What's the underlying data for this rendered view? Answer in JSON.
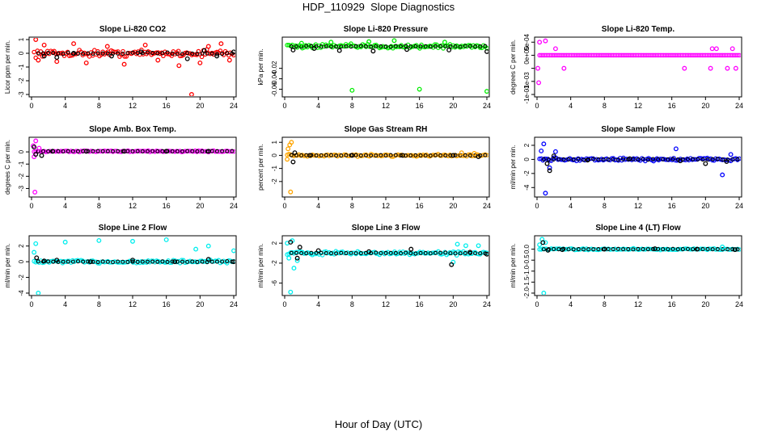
{
  "figure": {
    "title": "HDP_110929  Slope Diagnostics",
    "xlabel": "Hour of Day (UTC)"
  },
  "colors": {
    "black": "#000000",
    "red": "#ff0000",
    "green": "#00ee00",
    "magenta": "#ff00ff",
    "orange": "#ffa500",
    "blue": "#0000ff",
    "cyan": "#00eeee"
  },
  "chart_data": [
    {
      "type": "scatter",
      "title": "Slope Li-820 CO2",
      "ylabel": "Licor ppm per min.",
      "xlim": [
        0,
        24
      ],
      "ylim": [
        -3,
        1
      ],
      "xticks": [
        0,
        4,
        8,
        12,
        16,
        20,
        24
      ],
      "yticks": [
        -3,
        -2,
        -1,
        0,
        1
      ],
      "ytick_labels": [
        "-3",
        "-2",
        "-1",
        "0",
        "1"
      ],
      "color": "red",
      "cloud": {
        "base": 0,
        "spread": 0.35
      },
      "series": [
        {
          "name": "minute slopes",
          "color": "red",
          "points": [
            [
              0.5,
              1.0
            ],
            [
              0.8,
              -0.5
            ],
            [
              1.5,
              0.6
            ],
            [
              3.0,
              -0.6
            ],
            [
              5.0,
              0.7
            ],
            [
              6.5,
              -0.7
            ],
            [
              9.0,
              0.5
            ],
            [
              11.0,
              -0.8
            ],
            [
              13.5,
              0.6
            ],
            [
              15.0,
              -0.5
            ],
            [
              17.5,
              -0.9
            ],
            [
              19.0,
              -3.0
            ],
            [
              20.0,
              -0.7
            ],
            [
              21.0,
              0.5
            ],
            [
              22.5,
              0.7
            ],
            [
              23.5,
              -0.5
            ]
          ]
        },
        {
          "name": "means",
          "color": "black",
          "points": [
            [
              1.5,
              -0.2
            ],
            [
              3.0,
              -0.3
            ],
            [
              5.0,
              0.0
            ],
            [
              9.5,
              -0.2
            ],
            [
              13.0,
              0.1
            ],
            [
              18.5,
              -0.4
            ],
            [
              20.5,
              0.2
            ],
            [
              22.0,
              -0.2
            ],
            [
              24.0,
              0.1
            ]
          ]
        }
      ]
    },
    {
      "type": "scatter",
      "title": "Slope Li-820 Pressure",
      "ylabel": "kPa per min.",
      "xlim": [
        0,
        24
      ],
      "ylim": [
        -0.07,
        0.035
      ],
      "xticks": [
        0,
        4,
        8,
        12,
        16,
        20,
        24
      ],
      "yticks": [
        -0.06,
        -0.04,
        -0.02
      ],
      "ytick_labels": [
        "-0.06",
        "-0.04",
        "-0.02"
      ],
      "color": "green",
      "cloud": {
        "base": 0.022,
        "spread": 0.006
      },
      "series": [
        {
          "name": "minute slopes",
          "color": "green",
          "points": [
            [
              2.0,
              0.028
            ],
            [
              5.5,
              0.03
            ],
            [
              8.0,
              -0.062
            ],
            [
              10.0,
              0.031
            ],
            [
              13.0,
              0.033
            ],
            [
              16.0,
              -0.06
            ],
            [
              19.0,
              0.03
            ],
            [
              24.0,
              -0.064
            ]
          ]
        },
        {
          "name": "means",
          "color": "black",
          "points": [
            [
              1.0,
              0.015
            ],
            [
              3.5,
              0.018
            ],
            [
              6.5,
              0.014
            ],
            [
              10.5,
              0.013
            ],
            [
              14.5,
              0.016
            ],
            [
              19.5,
              0.015
            ],
            [
              24.0,
              0.012
            ]
          ]
        }
      ]
    },
    {
      "type": "scatter",
      "title": "Slope Li-820 Temp.",
      "ylabel": "degrees C per min.",
      "xlim": [
        0,
        24
      ],
      "ylim": [
        -0.0015,
        0.0006
      ],
      "xticks": [
        0,
        4,
        8,
        12,
        16,
        20,
        24
      ],
      "yticks": [
        -0.0015,
        -0.001,
        -0.0005,
        0,
        0.0005
      ],
      "ytick_labels": [
        "-1e-03",
        "-1e-03",
        "",
        "0e+00",
        "5e-04"
      ],
      "color": "magenta",
      "cloud": {
        "base": 0,
        "spread": 0
      },
      "series": [
        {
          "name": "minute slopes",
          "color": "magenta",
          "points": [
            [
              0.1,
              -0.0005
            ],
            [
              0.2,
              -0.00105
            ],
            [
              0.3,
              0.0005
            ],
            [
              1.0,
              0.00055
            ],
            [
              2.2,
              0.00025
            ],
            [
              3.2,
              -0.0005
            ],
            [
              17.5,
              -0.0005
            ],
            [
              20.6,
              -0.0005
            ],
            [
              20.8,
              0.00025
            ],
            [
              21.3,
              0.00025
            ],
            [
              22.6,
              -0.0005
            ],
            [
              23.2,
              0.00025
            ],
            [
              23.6,
              -0.0005
            ]
          ]
        }
      ]
    },
    {
      "type": "scatter",
      "title": "Slope Amb. Box Temp.",
      "ylabel": "degrees C per min.",
      "xlim": [
        0,
        24
      ],
      "ylim": [
        -3.5,
        1
      ],
      "xticks": [
        0,
        4,
        8,
        12,
        16,
        20,
        24
      ],
      "yticks": [
        -3,
        -2,
        -1,
        0
      ],
      "ytick_labels": [
        "-3",
        "-2",
        "-1",
        "0"
      ],
      "color": "magenta",
      "cloud": {
        "base": 0.05,
        "spread": 0.08
      },
      "series": [
        {
          "name": "minute slopes",
          "color": "magenta",
          "points": [
            [
              0.2,
              0.5
            ],
            [
              0.5,
              0.9
            ],
            [
              0.9,
              0.3
            ],
            [
              0.3,
              -0.4
            ],
            [
              0.4,
              -3.3
            ]
          ]
        },
        {
          "name": "means",
          "color": "black",
          "points": [
            [
              0.3,
              0.4
            ],
            [
              0.5,
              -0.2
            ],
            [
              1.2,
              -0.3
            ],
            [
              2.5,
              0.05
            ],
            [
              6.5,
              0.05
            ],
            [
              11.0,
              0.05
            ],
            [
              16.0,
              0.05
            ],
            [
              21.0,
              0.05
            ]
          ]
        }
      ]
    },
    {
      "type": "scatter",
      "title": "Slope Gas Stream RH",
      "ylabel": "percent per min.",
      "xlim": [
        0,
        24
      ],
      "ylim": [
        -3,
        1.2
      ],
      "xticks": [
        0,
        4,
        8,
        12,
        16,
        20,
        24
      ],
      "yticks": [
        -2,
        -1,
        0,
        1
      ],
      "ytick_labels": [
        "-2",
        "-1",
        "0",
        "1"
      ],
      "color": "orange",
      "cloud": {
        "base": 0,
        "spread": 0.12
      },
      "series": [
        {
          "name": "minute slopes",
          "color": "orange",
          "points": [
            [
              0.4,
              0.5
            ],
            [
              0.6,
              0.8
            ],
            [
              0.8,
              1.0
            ],
            [
              0.3,
              -0.3
            ],
            [
              0.7,
              -2.8
            ],
            [
              21.0,
              0.2
            ],
            [
              22.5,
              0.15
            ]
          ]
        },
        {
          "name": "means",
          "color": "black",
          "points": [
            [
              1.0,
              -0.5
            ],
            [
              1.2,
              0.2
            ],
            [
              3.0,
              0.0
            ],
            [
              8.0,
              0.0
            ],
            [
              14.0,
              0.0
            ],
            [
              20.0,
              0.0
            ],
            [
              23.0,
              -0.1
            ]
          ]
        }
      ]
    },
    {
      "type": "scatter",
      "title": "Slope Sample Flow",
      "ylabel": "ml/min per min.",
      "xlim": [
        0,
        24
      ],
      "ylim": [
        -5,
        2.8
      ],
      "xticks": [
        0,
        4,
        8,
        12,
        16,
        20,
        24
      ],
      "yticks": [
        -4,
        -2,
        0,
        2
      ],
      "ytick_labels": [
        "-4",
        "-2",
        "0",
        "2"
      ],
      "color": "blue",
      "cloud": {
        "base": 0,
        "spread": 0.35
      },
      "series": [
        {
          "name": "minute slopes",
          "color": "blue",
          "points": [
            [
              0.8,
              2.2
            ],
            [
              0.5,
              1.2
            ],
            [
              1.0,
              -4.8
            ],
            [
              1.5,
              -1.2
            ],
            [
              2.2,
              1.1
            ],
            [
              16.5,
              1.5
            ],
            [
              22.0,
              -2.2
            ],
            [
              23.0,
              0.7
            ]
          ]
        },
        {
          "name": "means",
          "color": "black",
          "points": [
            [
              1.2,
              -0.6
            ],
            [
              1.5,
              -1.6
            ],
            [
              2.0,
              0.5
            ],
            [
              6.0,
              -0.1
            ],
            [
              11.0,
              0.1
            ],
            [
              17.0,
              -0.2
            ],
            [
              20.0,
              -0.6
            ],
            [
              22.5,
              -0.3
            ]
          ]
        }
      ]
    },
    {
      "type": "scatter",
      "title": "Slope Line 2 Flow",
      "ylabel": "ml/min per min.",
      "xlim": [
        0,
        24
      ],
      "ylim": [
        -4,
        3
      ],
      "xticks": [
        0,
        4,
        8,
        12,
        16,
        20,
        24
      ],
      "yticks": [
        -4,
        -2,
        0,
        2
      ],
      "ytick_labels": [
        "-4",
        "-2",
        "0",
        "2"
      ],
      "color": "cyan",
      "cloud": {
        "base": 0,
        "spread": 0.3
      },
      "series": [
        {
          "name": "minute slopes",
          "color": "cyan",
          "points": [
            [
              0.5,
              2.3
            ],
            [
              0.8,
              -4.0
            ],
            [
              0.3,
              1.2
            ],
            [
              4.0,
              2.5
            ],
            [
              8.0,
              2.7
            ],
            [
              12.0,
              2.6
            ],
            [
              16.0,
              2.8
            ],
            [
              19.5,
              1.6
            ],
            [
              21.0,
              2.0
            ],
            [
              24.0,
              1.4
            ]
          ]
        },
        {
          "name": "means",
          "color": "black",
          "points": [
            [
              0.6,
              0.5
            ],
            [
              1.5,
              0.1
            ],
            [
              3.0,
              0.2
            ],
            [
              7.0,
              0.0
            ],
            [
              12.0,
              0.2
            ],
            [
              17.0,
              0.0
            ],
            [
              21.0,
              0.3
            ],
            [
              24.0,
              0.0
            ]
          ]
        }
      ]
    },
    {
      "type": "scatter",
      "title": "Slope Line 3 Flow",
      "ylabel": "ml/min per min.",
      "xlim": [
        0,
        24
      ],
      "ylim": [
        -8,
        3
      ],
      "xticks": [
        0,
        4,
        8,
        12,
        16,
        20,
        24
      ],
      "yticks": [
        -6,
        -2,
        2
      ],
      "ytick_labels": [
        "-6",
        "-2",
        "2"
      ],
      "color": "cyan",
      "cloud": {
        "base": 0,
        "spread": 0.5
      },
      "series": [
        {
          "name": "minute slopes",
          "color": "cyan",
          "points": [
            [
              0.3,
              2.0
            ],
            [
              0.5,
              -1.0
            ],
            [
              0.7,
              -7.8
            ],
            [
              1.1,
              -3.0
            ],
            [
              1.5,
              -1.5
            ],
            [
              0.9,
              2.5
            ],
            [
              20.0,
              -1.8
            ],
            [
              20.5,
              1.8
            ],
            [
              21.5,
              1.5
            ],
            [
              23.0,
              1.5
            ]
          ]
        },
        {
          "name": "means",
          "color": "black",
          "points": [
            [
              0.7,
              2.2
            ],
            [
              1.5,
              -1.0
            ],
            [
              1.8,
              1.2
            ],
            [
              4.0,
              0.5
            ],
            [
              10.0,
              0.3
            ],
            [
              15.0,
              0.8
            ],
            [
              19.8,
              -2.3
            ],
            [
              22.0,
              0.2
            ],
            [
              24.0,
              -0.2
            ]
          ]
        }
      ]
    },
    {
      "type": "scatter",
      "title": "Slope Line 4 (LT) Flow",
      "ylabel": "ml/min per min.",
      "xlim": [
        0,
        24
      ],
      "ylim": [
        -2,
        0.5
      ],
      "xticks": [
        0,
        4,
        8,
        12,
        16,
        20,
        24
      ],
      "yticks": [
        -2,
        -1.5,
        -1,
        -0.5,
        0
      ],
      "ytick_labels": [
        "-2.0",
        "-1.5",
        "-1.0",
        "-0.5",
        "0.0"
      ],
      "color": "cyan",
      "cloud": {
        "base": 0,
        "spread": 0.05
      },
      "series": [
        {
          "name": "minute slopes",
          "color": "cyan",
          "points": [
            [
              0.3,
              0.2
            ],
            [
              0.6,
              0.45
            ],
            [
              0.8,
              -2.0
            ],
            [
              1.0,
              0.3
            ],
            [
              22.0,
              0.1
            ]
          ]
        },
        {
          "name": "means",
          "color": "black",
          "points": [
            [
              0.7,
              0.3
            ],
            [
              1.3,
              -0.05
            ],
            [
              3.0,
              -0.02
            ],
            [
              8.0,
              0.0
            ],
            [
              14.0,
              0.02
            ],
            [
              19.0,
              0.0
            ],
            [
              23.5,
              -0.02
            ]
          ]
        }
      ]
    }
  ]
}
